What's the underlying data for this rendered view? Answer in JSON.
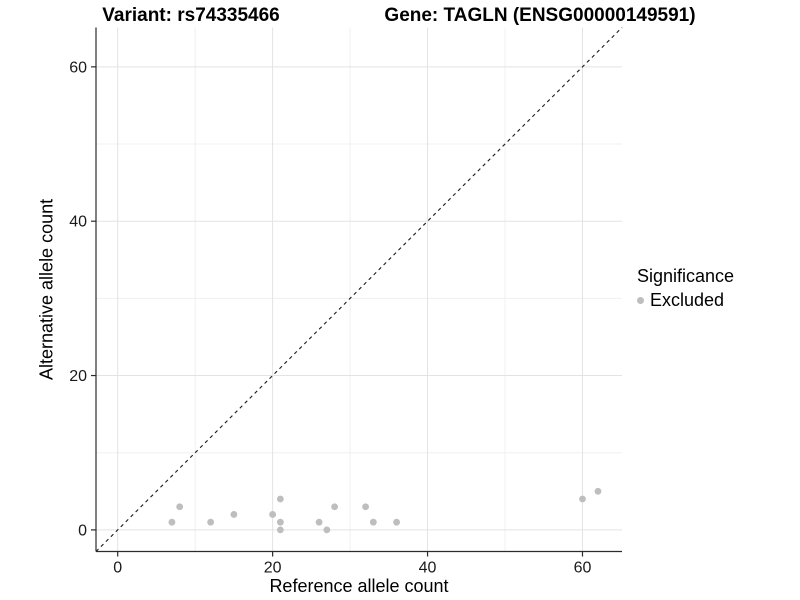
{
  "chart_data": {
    "type": "scatter",
    "title_left": "Variant: rs74335466",
    "title_right": "Gene: TAGLN (ENSG00000149591)",
    "xlabel": "Reference allele count",
    "ylabel": "Alternative allele count",
    "xlim": [
      -2.8,
      65.1
    ],
    "ylim": [
      -2.8,
      65.1
    ],
    "x_ticks": [
      0,
      20,
      40,
      60
    ],
    "y_ticks": [
      0,
      20,
      40,
      60
    ],
    "x_minor_gridlines": [
      10,
      30,
      50
    ],
    "y_minor_gridlines": [
      10,
      30,
      50
    ],
    "grid": true,
    "identity_line": {
      "equation": "y = x",
      "style": "dashed",
      "color": "#1a1a1a"
    },
    "series": [
      {
        "name": "Excluded",
        "marker": "circle",
        "color": "#bebebe",
        "points": [
          [
            7,
            1
          ],
          [
            8,
            3
          ],
          [
            12,
            1
          ],
          [
            15,
            2
          ],
          [
            20,
            2
          ],
          [
            21,
            0
          ],
          [
            21,
            1
          ],
          [
            21,
            4
          ],
          [
            26,
            1
          ],
          [
            27,
            0
          ],
          [
            28,
            3
          ],
          [
            32,
            3
          ],
          [
            33,
            1
          ],
          [
            36,
            1
          ],
          [
            60,
            4
          ],
          [
            62,
            5
          ]
        ]
      }
    ],
    "legend": {
      "title": "Significance",
      "position": "right",
      "items": [
        {
          "label": "Excluded",
          "color": "#bebebe",
          "marker": "circle"
        }
      ]
    },
    "style": {
      "background": "#ffffff",
      "grid_major_color": "#e3e3e3",
      "grid_minor_color": "#f0f0f0",
      "axis_line_color": "#2b2b2b",
      "tick_label_color": "#1a1a1a",
      "tick_label_size": 16
    }
  }
}
